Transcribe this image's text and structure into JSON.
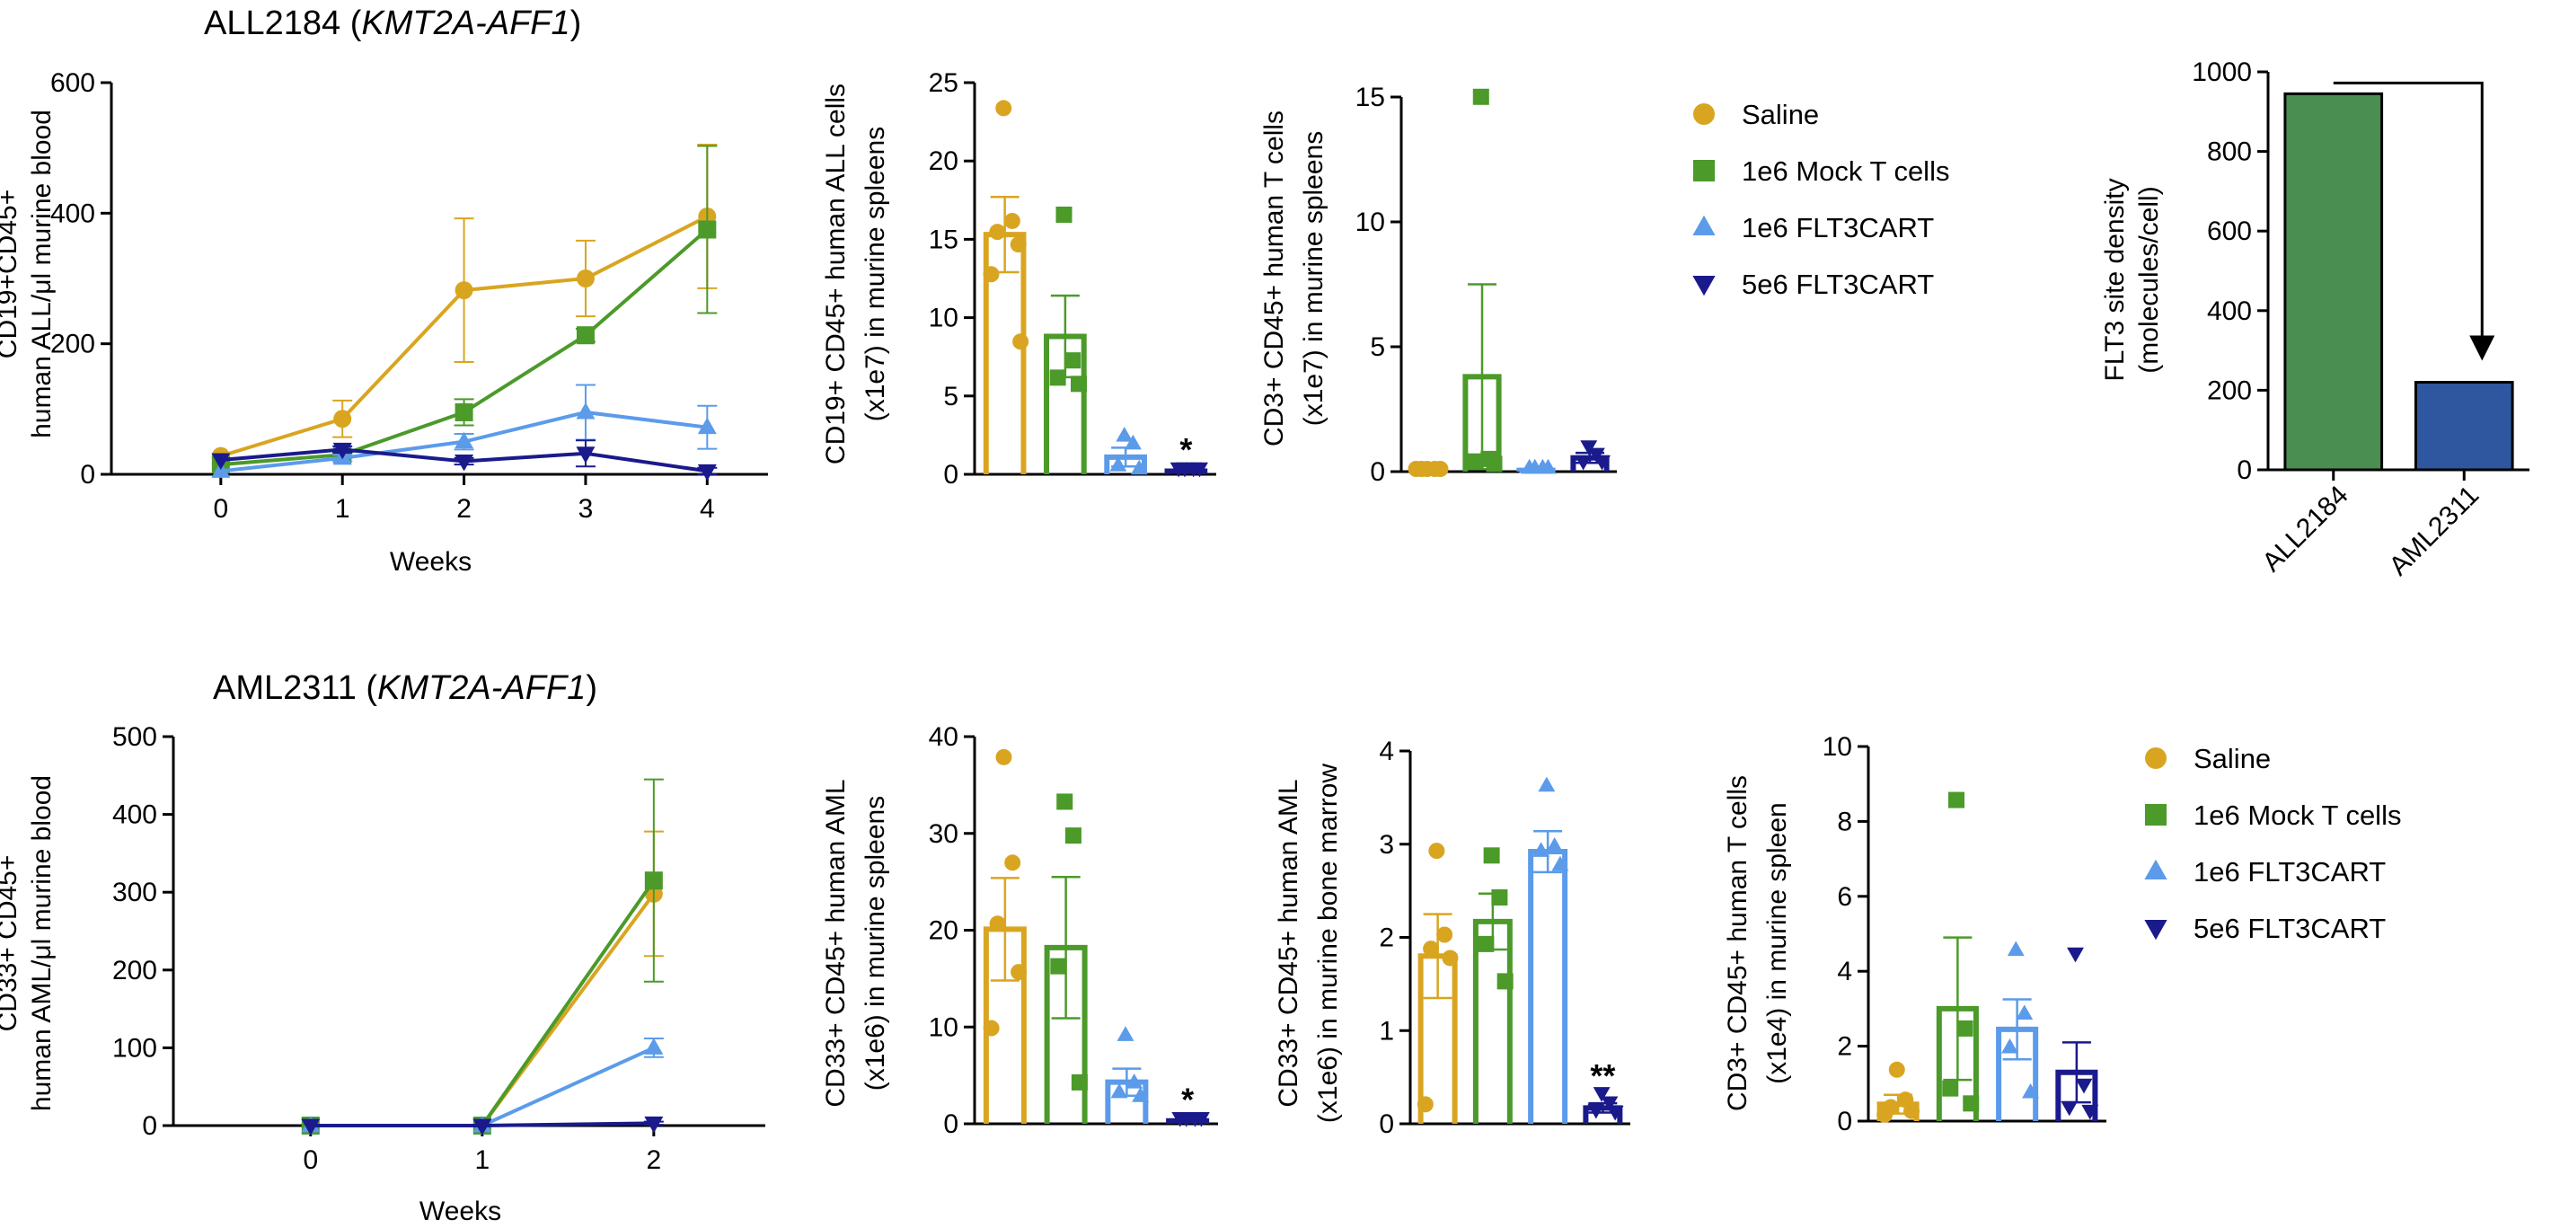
{
  "colors": {
    "saline": "#D9A521",
    "mock": "#4B9A2A",
    "flt1e6": "#5B9BEA",
    "flt5e6": "#1A1A8C",
    "bar_all2184": "#4A8E52",
    "bar_aml2311": "#2E57A0"
  },
  "legend": [
    {
      "key": "saline",
      "label": "Saline",
      "marker": "circle"
    },
    {
      "key": "mock",
      "label": "1e6 Mock T cells",
      "marker": "square"
    },
    {
      "key": "flt1e6",
      "label": "1e6 FLT3CART",
      "marker": "triangle-up"
    },
    {
      "key": "flt5e6",
      "label": "5e6 FLT3CART",
      "marker": "triangle-down"
    }
  ],
  "chart_data": [
    {
      "id": "all-line",
      "type": "line",
      "title_main": "ALL2184 (",
      "title_italic": "KMT2A-AFF1",
      "title_end": ")",
      "xlabel": "Weeks",
      "ylabel_lines": [
        "CD19+CD45+",
        "human ALL/μl murine blood"
      ],
      "x": [
        0,
        1,
        2,
        3,
        4
      ],
      "xlim": [
        -0.9,
        4.5
      ],
      "ylim": [
        0,
        600
      ],
      "yticks": [
        0,
        200,
        400,
        600
      ],
      "series": [
        {
          "key": "saline",
          "values": [
            28,
            85,
            282,
            300,
            395
          ],
          "err": [
            0,
            28,
            110,
            58,
            110
          ]
        },
        {
          "key": "mock",
          "values": [
            15,
            30,
            95,
            213,
            375
          ],
          "err": [
            0,
            5,
            20,
            10,
            128
          ]
        },
        {
          "key": "flt1e6",
          "values": [
            5,
            25,
            50,
            95,
            72
          ],
          "err": [
            0,
            5,
            12,
            42,
            33
          ]
        },
        {
          "key": "flt5e6",
          "values": [
            22,
            38,
            20,
            32,
            5
          ],
          "err": [
            0,
            5,
            5,
            20,
            5
          ]
        }
      ]
    },
    {
      "id": "all-cd19",
      "type": "bar",
      "ylabel_lines": [
        "CD19+ CD45+ human ALL cells",
        "(x1e7) in murine spleens"
      ],
      "ylim": [
        0,
        25
      ],
      "yticks": [
        0,
        5,
        10,
        15,
        20,
        25
      ],
      "bars": [
        {
          "key": "saline",
          "value": 15.3,
          "err": 2.4,
          "points": [
            23.2,
            16.0,
            15.3,
            14.5,
            12.6,
            8.3
          ]
        },
        {
          "key": "mock",
          "value": 8.8,
          "err": 2.6,
          "points": [
            16.4,
            7.1,
            6.0,
            5.6
          ]
        },
        {
          "key": "flt1e6",
          "value": 1.1,
          "err": 0.6,
          "points": [
            2.3,
            1.8,
            0.4,
            0.2
          ]
        },
        {
          "key": "flt5e6",
          "value": 0.2,
          "err": 0.1,
          "points": [
            0.2,
            0.2,
            0.2,
            0.2
          ]
        }
      ],
      "stars": [
        {
          "bar": 3,
          "text": "*"
        }
      ]
    },
    {
      "id": "all-cd3",
      "type": "bar",
      "ylabel_lines": [
        "CD3+ CD45+ human T cells",
        "(x1e7) in murine spleens"
      ],
      "ylim": [
        0,
        15
      ],
      "yticks": [
        0,
        5,
        10,
        15
      ],
      "bars": [
        {
          "key": "saline",
          "value": 0.05,
          "err": 0,
          "points": [
            0,
            0,
            0,
            0,
            0
          ]
        },
        {
          "key": "mock",
          "value": 3.8,
          "err": 3.7,
          "points": [
            14.9,
            0.4,
            0.3,
            0.2
          ]
        },
        {
          "key": "flt1e6",
          "value": 0.05,
          "err": 0,
          "points": [
            0.05,
            0.05,
            0.05,
            0.05
          ]
        },
        {
          "key": "flt5e6",
          "value": 0.55,
          "err": 0.2,
          "points": [
            0.9,
            0.6,
            0.3,
            0.3
          ]
        }
      ]
    },
    {
      "id": "flt3-density",
      "type": "bar",
      "ylabel_lines": [
        "FLT3 site density",
        "(molecules/cell)"
      ],
      "categories": [
        "ALL2184",
        "AML2311"
      ],
      "values": [
        945,
        220
      ],
      "ylim": [
        0,
        1000
      ],
      "yticks": [
        0,
        200,
        400,
        600,
        800,
        1000
      ]
    },
    {
      "id": "aml-line",
      "type": "line",
      "title_main": "AML2311 (",
      "title_italic": "KMT2A-AFF1",
      "title_end": ")",
      "xlabel": "Weeks",
      "ylabel_lines": [
        "CD33+ CD45+",
        "human AML/μl murine blood"
      ],
      "x": [
        0,
        1,
        2
      ],
      "xlim": [
        -0.8,
        2.65
      ],
      "ylim": [
        0,
        500
      ],
      "yticks": [
        0,
        100,
        200,
        300,
        400,
        500
      ],
      "series": [
        {
          "key": "saline",
          "values": [
            0,
            0,
            298
          ],
          "err": [
            0,
            0,
            80
          ]
        },
        {
          "key": "mock",
          "values": [
            0,
            0,
            315
          ],
          "err": [
            0,
            0,
            130
          ]
        },
        {
          "key": "flt1e6",
          "values": [
            0,
            0,
            100
          ],
          "err": [
            0,
            0,
            12
          ]
        },
        {
          "key": "flt5e6",
          "values": [
            0,
            0,
            3
          ],
          "err": [
            0,
            0,
            2
          ]
        }
      ]
    },
    {
      "id": "aml-spleen",
      "type": "bar",
      "ylabel_lines": [
        "CD33+ CD45+ human AML",
        "(x1e6) in murine spleens"
      ],
      "ylim": [
        0,
        40
      ],
      "yticks": [
        0,
        10,
        20,
        30,
        40
      ],
      "bars": [
        {
          "key": "saline",
          "value": 20.1,
          "err": 5.3,
          "points": [
            37.6,
            26.7,
            20.4,
            15.4,
            9.6
          ]
        },
        {
          "key": "mock",
          "value": 18.2,
          "err": 7.3,
          "points": [
            33.0,
            29.5,
            16.0,
            4.0
          ]
        },
        {
          "key": "flt1e6",
          "value": 4.3,
          "err": 1.4,
          "points": [
            8.9,
            4.0,
            3.0,
            2.6
          ]
        },
        {
          "key": "flt5e6",
          "value": 0.3,
          "err": 0.1,
          "points": [
            0.3,
            0.3,
            0.3,
            0.3
          ]
        }
      ],
      "stars": [
        {
          "bar": 3,
          "text": "*"
        }
      ]
    },
    {
      "id": "aml-bm",
      "type": "bar",
      "ylabel_lines": [
        "CD33+ CD45+ human AML",
        "(x1e6) in murine bone marrow"
      ],
      "ylim": [
        0,
        4
      ],
      "yticks": [
        0,
        1,
        2,
        3,
        4
      ],
      "bars": [
        {
          "key": "saline",
          "value": 1.8,
          "err": 0.45,
          "points": [
            2.9,
            2.0,
            1.85,
            1.75,
            0.18
          ]
        },
        {
          "key": "mock",
          "value": 2.17,
          "err": 0.3,
          "points": [
            2.85,
            2.4,
            1.9,
            1.5
          ]
        },
        {
          "key": "flt1e6",
          "value": 2.92,
          "err": 0.22,
          "points": [
            3.6,
            2.95,
            2.9,
            2.75
          ]
        },
        {
          "key": "flt5e6",
          "value": 0.17,
          "err": 0.05,
          "points": [
            0.3,
            0.2,
            0.12,
            0.1
          ]
        }
      ],
      "stars": [
        {
          "bar": 3,
          "text": "**"
        }
      ]
    },
    {
      "id": "aml-cd3",
      "type": "bar",
      "ylabel_lines": [
        "CD3+ CD45+ human T cells",
        "(x1e4) in murine spleen"
      ],
      "ylim": [
        0,
        10
      ],
      "yticks": [
        0,
        2,
        4,
        6,
        8,
        10
      ],
      "bars": [
        {
          "key": "saline",
          "value": 0.45,
          "err": 0.25,
          "points": [
            1.3,
            0.5,
            0.3,
            0.2,
            0.1
          ]
        },
        {
          "key": "mock",
          "value": 3.0,
          "err": 1.9,
          "points": [
            8.5,
            2.4,
            0.8,
            0.4
          ]
        },
        {
          "key": "flt1e6",
          "value": 2.45,
          "err": 0.8,
          "points": [
            4.5,
            2.8,
            1.9,
            0.7
          ]
        },
        {
          "key": "flt5e6",
          "value": 1.3,
          "err": 0.8,
          "points": [
            4.4,
            0.9,
            0.3,
            0.2
          ]
        }
      ]
    }
  ]
}
